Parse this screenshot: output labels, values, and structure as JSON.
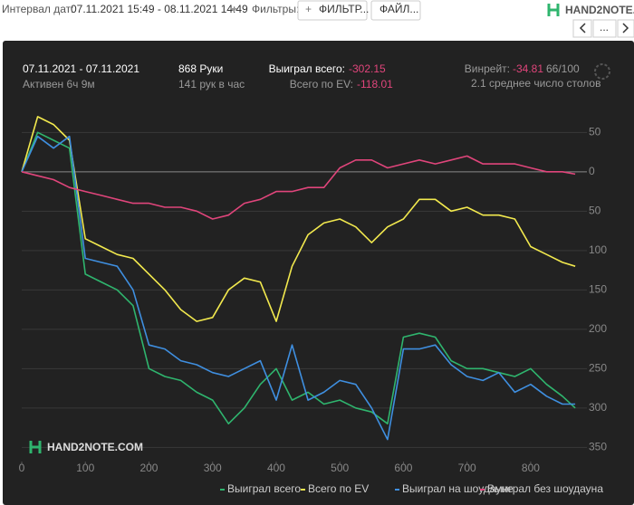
{
  "toolbar": {
    "interval_label": "Интервал дат:",
    "interval": "07.11.2021 15:49 - 08.11.2021 14:49",
    "filters_label": "Фильтры:",
    "filter_button": "ФИЛЬТР...",
    "file_button": "ФАЙЛ...",
    "logo": "HAND2NOTE.COM",
    "more_button": "..."
  },
  "stats": {
    "period": "07.11.2021 - 07.11.2021",
    "active": "Активен 6ч 9м",
    "hands": "868 Руки",
    "hands_per_hour": "141 рук в час",
    "won_label": "Выиграл всего:",
    "won": "-302.15",
    "ev_label": "Всего по EV:",
    "ev": "-118.01",
    "winrate_label": "Винрейт:",
    "winrate": "-34.81",
    "winrate_unit": "66/100",
    "tables": "2.1 среднее число столов"
  },
  "watermark": "HAND2NOTE.COM",
  "chart_data": {
    "type": "line",
    "x": [
      0,
      25,
      50,
      75,
      100,
      125,
      150,
      175,
      200,
      225,
      250,
      275,
      300,
      325,
      350,
      375,
      400,
      425,
      450,
      475,
      500,
      525,
      550,
      575,
      600,
      625,
      650,
      675,
      700,
      725,
      750,
      775,
      800,
      825,
      850,
      870
    ],
    "series": [
      {
        "name": "Выиграл всего",
        "color": "#2fb56e",
        "values": [
          0,
          50,
          40,
          30,
          -130,
          -140,
          -150,
          -170,
          -250,
          -260,
          -265,
          -280,
          -290,
          -320,
          -300,
          -270,
          -250,
          -290,
          -280,
          -295,
          -290,
          -300,
          -305,
          -320,
          -210,
          -205,
          -210,
          -240,
          -250,
          -250,
          -255,
          -260,
          -250,
          -270,
          -285,
          -300
        ]
      },
      {
        "name": "Всего по EV",
        "color": "#f2e94e",
        "values": [
          0,
          70,
          60,
          40,
          -85,
          -95,
          -105,
          -110,
          -130,
          -150,
          -175,
          -190,
          -185,
          -150,
          -135,
          -140,
          -190,
          -120,
          -80,
          -65,
          -60,
          -70,
          -90,
          -70,
          -60,
          -35,
          -35,
          -50,
          -45,
          -55,
          -55,
          -60,
          -95,
          -105,
          -115,
          -120
        ]
      },
      {
        "name": "Выиграл на шоудауне",
        "color": "#3f8fe0",
        "values": [
          0,
          45,
          30,
          45,
          -110,
          -115,
          -120,
          -150,
          -220,
          -225,
          -240,
          -245,
          -255,
          -260,
          -250,
          -240,
          -290,
          -220,
          -290,
          -280,
          -265,
          -270,
          -300,
          -340,
          -225,
          -225,
          -220,
          -245,
          -260,
          -265,
          -255,
          -280,
          -270,
          -285,
          -295,
          -295
        ]
      },
      {
        "name": "Выиграл без шоудауна",
        "color": "#e0457b",
        "values": [
          0,
          -5,
          -10,
          -20,
          -25,
          -30,
          -35,
          -40,
          -40,
          -45,
          -45,
          -50,
          -60,
          -55,
          -40,
          -35,
          -25,
          -25,
          -20,
          -20,
          5,
          15,
          15,
          5,
          10,
          15,
          10,
          15,
          20,
          10,
          10,
          10,
          5,
          0,
          0,
          -3
        ]
      }
    ],
    "xlim": [
      0,
      877
    ],
    "xticks": [
      0,
      100,
      200,
      300,
      400,
      500,
      600,
      700,
      800
    ],
    "ylim": [
      -368,
      86
    ],
    "yticks": [
      50,
      0,
      {
        "value": -50,
        "label": "50"
      },
      {
        "value": -100,
        "label": "100"
      },
      {
        "value": -150,
        "label": "150"
      },
      {
        "value": -200,
        "label": "200"
      },
      {
        "value": -250,
        "label": "250"
      },
      {
        "value": -300,
        "label": "300"
      },
      {
        "value": -350,
        "label": "350"
      }
    ],
    "grid": true
  }
}
